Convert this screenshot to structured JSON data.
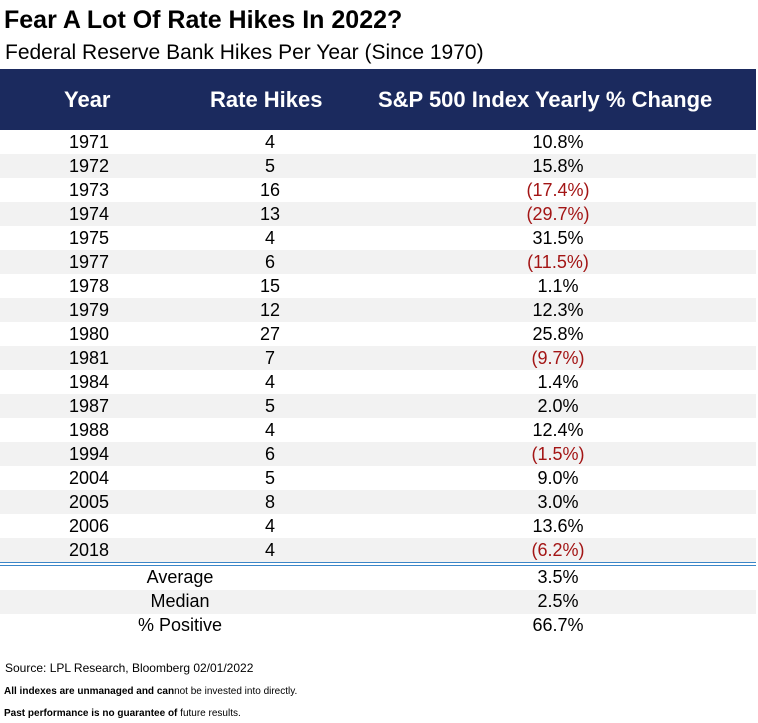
{
  "title": "Fear A Lot Of Rate Hikes In 2022?",
  "subtitle": "Federal Reserve Bank Hikes Per Year (Since 1970)",
  "columns": [
    "Year",
    "Rate Hikes",
    "S&P 500 Index Yearly % Change"
  ],
  "rows": [
    {
      "year": "1971",
      "hikes": "4",
      "change": "10.8%",
      "negative": false
    },
    {
      "year": "1972",
      "hikes": "5",
      "change": "15.8%",
      "negative": false
    },
    {
      "year": "1973",
      "hikes": "16",
      "change": "(17.4%)",
      "negative": true
    },
    {
      "year": "1974",
      "hikes": "13",
      "change": "(29.7%)",
      "negative": true
    },
    {
      "year": "1975",
      "hikes": "4",
      "change": "31.5%",
      "negative": false
    },
    {
      "year": "1977",
      "hikes": "6",
      "change": "(11.5%)",
      "negative": true
    },
    {
      "year": "1978",
      "hikes": "15",
      "change": "1.1%",
      "negative": false
    },
    {
      "year": "1979",
      "hikes": "12",
      "change": "12.3%",
      "negative": false
    },
    {
      "year": "1980",
      "hikes": "27",
      "change": "25.8%",
      "negative": false
    },
    {
      "year": "1981",
      "hikes": "7",
      "change": "(9.7%)",
      "negative": true
    },
    {
      "year": "1984",
      "hikes": "4",
      "change": "1.4%",
      "negative": false
    },
    {
      "year": "1987",
      "hikes": "5",
      "change": "2.0%",
      "negative": false
    },
    {
      "year": "1988",
      "hikes": "4",
      "change": "12.4%",
      "negative": false
    },
    {
      "year": "1994",
      "hikes": "6",
      "change": "(1.5%)",
      "negative": true
    },
    {
      "year": "2004",
      "hikes": "5",
      "change": "9.0%",
      "negative": false
    },
    {
      "year": "2005",
      "hikes": "8",
      "change": "3.0%",
      "negative": false
    },
    {
      "year": "2006",
      "hikes": "4",
      "change": "13.6%",
      "negative": false
    },
    {
      "year": "2018",
      "hikes": "4",
      "change": "(6.2%)",
      "negative": true
    }
  ],
  "summary": [
    {
      "label": "Average",
      "value": "3.5%"
    },
    {
      "label": "Median",
      "value": "2.5%"
    },
    {
      "label": "% Positive",
      "value": "66.7%"
    }
  ],
  "source": "Source: LPL Research, Bloomberg 02/01/2022",
  "disclaimer1_bold": "All indexes are unmanaged and can",
  "disclaimer1_rest": "not be invested into directly.",
  "disclaimer2_bold": "Past performance is no guarantee of",
  "disclaimer2_rest": " future results.",
  "colors": {
    "header_bg": "#1b2a5e",
    "negative": "#a31515",
    "alt_row": "#f2f2f2",
    "divider": "#3a86c8"
  },
  "chart_data": {
    "type": "table",
    "title": "Fear A Lot Of Rate Hikes In 2022?",
    "subtitle": "Federal Reserve Bank Hikes Per Year (Since 1970)",
    "columns": [
      "Year",
      "Rate Hikes",
      "S&P 500 Index Yearly % Change"
    ],
    "rows": [
      [
        "1971",
        4,
        10.8
      ],
      [
        "1972",
        5,
        15.8
      ],
      [
        "1973",
        16,
        -17.4
      ],
      [
        "1974",
        13,
        -29.7
      ],
      [
        "1975",
        4,
        31.5
      ],
      [
        "1977",
        6,
        -11.5
      ],
      [
        "1978",
        15,
        1.1
      ],
      [
        "1979",
        12,
        12.3
      ],
      [
        "1980",
        27,
        25.8
      ],
      [
        "1981",
        7,
        -9.7
      ],
      [
        "1984",
        4,
        1.4
      ],
      [
        "1987",
        5,
        2.0
      ],
      [
        "1988",
        4,
        12.4
      ],
      [
        "1994",
        6,
        -1.5
      ],
      [
        "2004",
        5,
        9.0
      ],
      [
        "2005",
        8,
        3.0
      ],
      [
        "2006",
        4,
        13.6
      ],
      [
        "2018",
        4,
        -6.2
      ]
    ],
    "summary": {
      "Average": 3.5,
      "Median": 2.5,
      "% Positive": 66.7
    }
  }
}
